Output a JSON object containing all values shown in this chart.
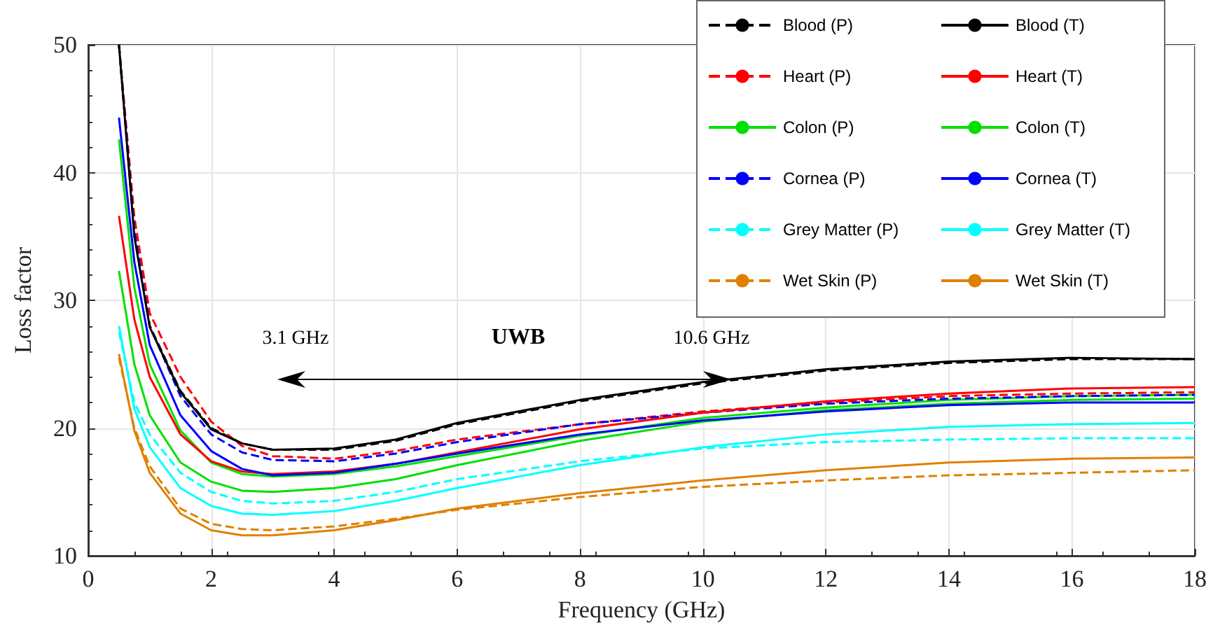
{
  "chart_data": {
    "type": "line",
    "xlabel": "Frequency (GHz)",
    "ylabel": "Loss factor",
    "xlim": [
      0,
      18
    ],
    "xticks": [
      0,
      2,
      4,
      6,
      8,
      10,
      12,
      14,
      16,
      18
    ],
    "ylim": [
      10,
      50
    ],
    "yticks": [
      10,
      20,
      30,
      40,
      50
    ],
    "grid": true,
    "legend": "top right",
    "marker": "none",
    "x": [
      0.5,
      0.75,
      1,
      1.5,
      2,
      2.5,
      3,
      4,
      5,
      6,
      8,
      10,
      12,
      14,
      16,
      18
    ],
    "series": [
      {
        "name": "Blood (P)",
        "color": "#000000",
        "line_style": "dashed",
        "values": [
          50,
          35.2,
          28.0,
          22.9,
          20.0,
          18.8,
          18.3,
          18.3,
          19.0,
          20.3,
          22.1,
          23.5,
          24.5,
          25.1,
          25.4,
          25.4
        ]
      },
      {
        "name": "Heart (P)",
        "color": "#ff0000",
        "line_style": "dashed",
        "values": [
          50,
          36.5,
          29.0,
          24.0,
          20.5,
          18.6,
          17.8,
          17.6,
          18.2,
          19.1,
          20.3,
          21.3,
          22.0,
          22.5,
          22.7,
          22.8
        ]
      },
      {
        "name": "Colon (P)",
        "color": "#00e000",
        "line_style": "solid",
        "values": [
          42.6,
          31.0,
          25.0,
          19.8,
          17.3,
          16.4,
          16.2,
          16.4,
          17.0,
          17.8,
          19.4,
          20.8,
          21.6,
          22.2,
          22.5,
          22.6
        ]
      },
      {
        "name": "Cornea (P)",
        "color": "#0000ff",
        "line_style": "dashed",
        "values": [
          50,
          35.5,
          28.0,
          22.5,
          19.5,
          18.1,
          17.5,
          17.4,
          18.0,
          18.9,
          20.3,
          21.2,
          21.9,
          22.3,
          22.5,
          22.6
        ]
      },
      {
        "name": "Grey Matter (P)",
        "color": "#00ffff",
        "line_style": "dashed",
        "values": [
          27.5,
          22.0,
          19.5,
          16.5,
          15.0,
          14.3,
          14.1,
          14.3,
          15.0,
          16.0,
          17.4,
          18.4,
          18.9,
          19.1,
          19.2,
          19.2
        ]
      },
      {
        "name": "Wet Skin (P)",
        "color": "#e08000",
        "line_style": "dashed",
        "values": [
          25.5,
          20.0,
          17.0,
          13.7,
          12.5,
          12.1,
          12.0,
          12.3,
          12.9,
          13.6,
          14.6,
          15.4,
          15.9,
          16.3,
          16.5,
          16.7
        ]
      },
      {
        "name": "Blood (T)",
        "color": "#000000",
        "line_style": "solid",
        "values": [
          50,
          35.0,
          27.9,
          22.8,
          19.9,
          18.8,
          18.3,
          18.4,
          19.1,
          20.4,
          22.2,
          23.6,
          24.6,
          25.2,
          25.5,
          25.4
        ]
      },
      {
        "name": "Heart (T)",
        "color": "#ff0000",
        "line_style": "solid",
        "values": [
          36.6,
          28.5,
          24.0,
          19.5,
          17.4,
          16.6,
          16.4,
          16.6,
          17.2,
          18.1,
          19.9,
          21.2,
          22.1,
          22.7,
          23.1,
          23.2
        ]
      },
      {
        "name": "Colon (T)",
        "color": "#00e000",
        "line_style": "solid",
        "values": [
          32.3,
          25.0,
          21.0,
          17.3,
          15.8,
          15.1,
          15.0,
          15.3,
          16.0,
          17.1,
          19.0,
          20.5,
          21.4,
          21.9,
          22.2,
          22.3
        ]
      },
      {
        "name": "Cornea (T)",
        "color": "#0000ff",
        "line_style": "solid",
        "values": [
          44.3,
          33.0,
          26.5,
          21.0,
          18.2,
          16.8,
          16.3,
          16.5,
          17.2,
          18.0,
          19.5,
          20.6,
          21.3,
          21.8,
          22.0,
          22.0
        ]
      },
      {
        "name": "Grey Matter (T)",
        "color": "#00ffff",
        "line_style": "solid",
        "values": [
          28.0,
          21.5,
          18.5,
          15.3,
          13.9,
          13.3,
          13.2,
          13.5,
          14.3,
          15.3,
          17.1,
          18.5,
          19.5,
          20.1,
          20.3,
          20.4
        ]
      },
      {
        "name": "Wet Skin (T)",
        "color": "#e08000",
        "line_style": "solid",
        "values": [
          25.8,
          19.8,
          16.5,
          13.3,
          12.0,
          11.6,
          11.6,
          12.0,
          12.8,
          13.7,
          14.9,
          15.9,
          16.7,
          17.3,
          17.6,
          17.7
        ]
      }
    ],
    "annotations": [
      "3.1 GHz",
      "UWB",
      "10.6 GHz"
    ]
  }
}
